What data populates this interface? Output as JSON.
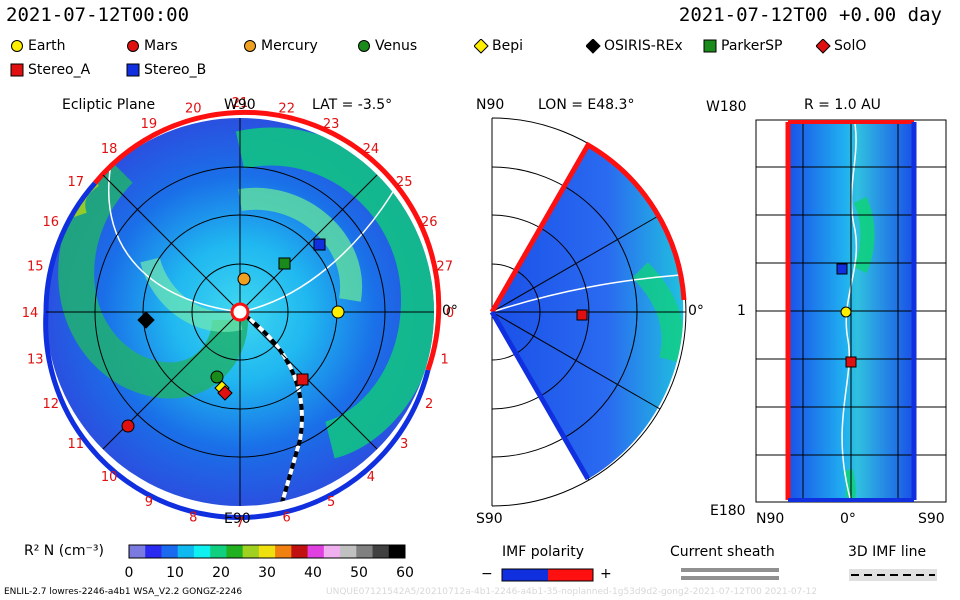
{
  "header": {
    "date_left": "2021-07-12T00:00",
    "date_right": "2021-07-12T00 +0.00 day"
  },
  "legend": [
    {
      "name": "Earth",
      "shape": "circle",
      "color": "#ffee00"
    },
    {
      "name": "Mars",
      "shape": "circle",
      "color": "#e01010"
    },
    {
      "name": "Mercury",
      "shape": "circle",
      "color": "#f0a020"
    },
    {
      "name": "Venus",
      "shape": "circle",
      "color": "#1a8a1a"
    },
    {
      "name": "Bepi",
      "shape": "diamond",
      "color": "#ffee00"
    },
    {
      "name": "OSIRIS-REx",
      "shape": "diamond",
      "color": "#000000"
    },
    {
      "name": "ParkerSP",
      "shape": "square",
      "color": "#1a8a1a"
    },
    {
      "name": "SolO",
      "shape": "diamond",
      "color": "#e01010"
    },
    {
      "name": "Stereo_A",
      "shape": "square",
      "color": "#e01010"
    },
    {
      "name": "Stereo_B",
      "shape": "square",
      "color": "#1030e0"
    }
  ],
  "panels": {
    "ecliptic": {
      "title": "Ecliptic Plane",
      "lat": "LAT = -3.5°",
      "top": "W90",
      "bottom": "E90",
      "right": "0°",
      "carrington_labels": [
        "19",
        "20",
        "21",
        "22",
        "23",
        "24",
        "25",
        "26",
        "27",
        "0",
        "1",
        "2",
        "3",
        "4",
        "5",
        "6",
        "7",
        "8",
        "9",
        "10",
        "11",
        "12",
        "13",
        "14",
        "15",
        "16",
        "17",
        "18"
      ]
    },
    "meridional": {
      "lon": "LON = E48.3°",
      "top": "N90",
      "bottom": "S90",
      "right": "0°"
    },
    "rdisk": {
      "title": "R = 1.0 AU",
      "top": "W180",
      "bottom": "E180",
      "left_mid": "1",
      "x_left": "N90",
      "x_mid": "0°",
      "x_right": "S90"
    }
  },
  "colorbar": {
    "label": "R² N (cm⁻³)",
    "ticks": [
      "0",
      "10",
      "20",
      "30",
      "40",
      "50",
      "60"
    ],
    "stops": [
      "#7a7ae0",
      "#2a2af0",
      "#1a6af0",
      "#10b8f0",
      "#10f0f0",
      "#10d080",
      "#20b020",
      "#a0d020",
      "#f0e010",
      "#f08010",
      "#c01010",
      "#e040e0",
      "#f0b0f0",
      "#c0c0c0",
      "#808080",
      "#404040",
      "#000000"
    ]
  },
  "imf": {
    "polarity_label": "IMF polarity",
    "minus": "−",
    "plus": "+",
    "sheath_label": "Current sheath",
    "line_label": "3D IMF line",
    "neg_color": "#1030e0",
    "pos_color": "#ff1010"
  },
  "footer": {
    "version": "ENLIL-2.7 lowres-2246-a4b1 WSA_V2.2 GONGZ-2246",
    "run_id": "UNQUE07121542A5/20210712a-4b1-2246-a4b1-35-noplanned-1g53d9d2-gong2-2021-07-12T00   2021-07-12"
  },
  "chart_data": {
    "type": "heatmap",
    "title": "",
    "quantity": "R² N (cm⁻³)",
    "color_range": [
      0,
      60
    ],
    "panels": [
      "Ecliptic Plane (LAT = -3.5°)",
      "LON = E48.3°",
      "R = 1.0 AU"
    ],
    "ecliptic_radial_range_au": [
      0,
      2
    ]
  }
}
